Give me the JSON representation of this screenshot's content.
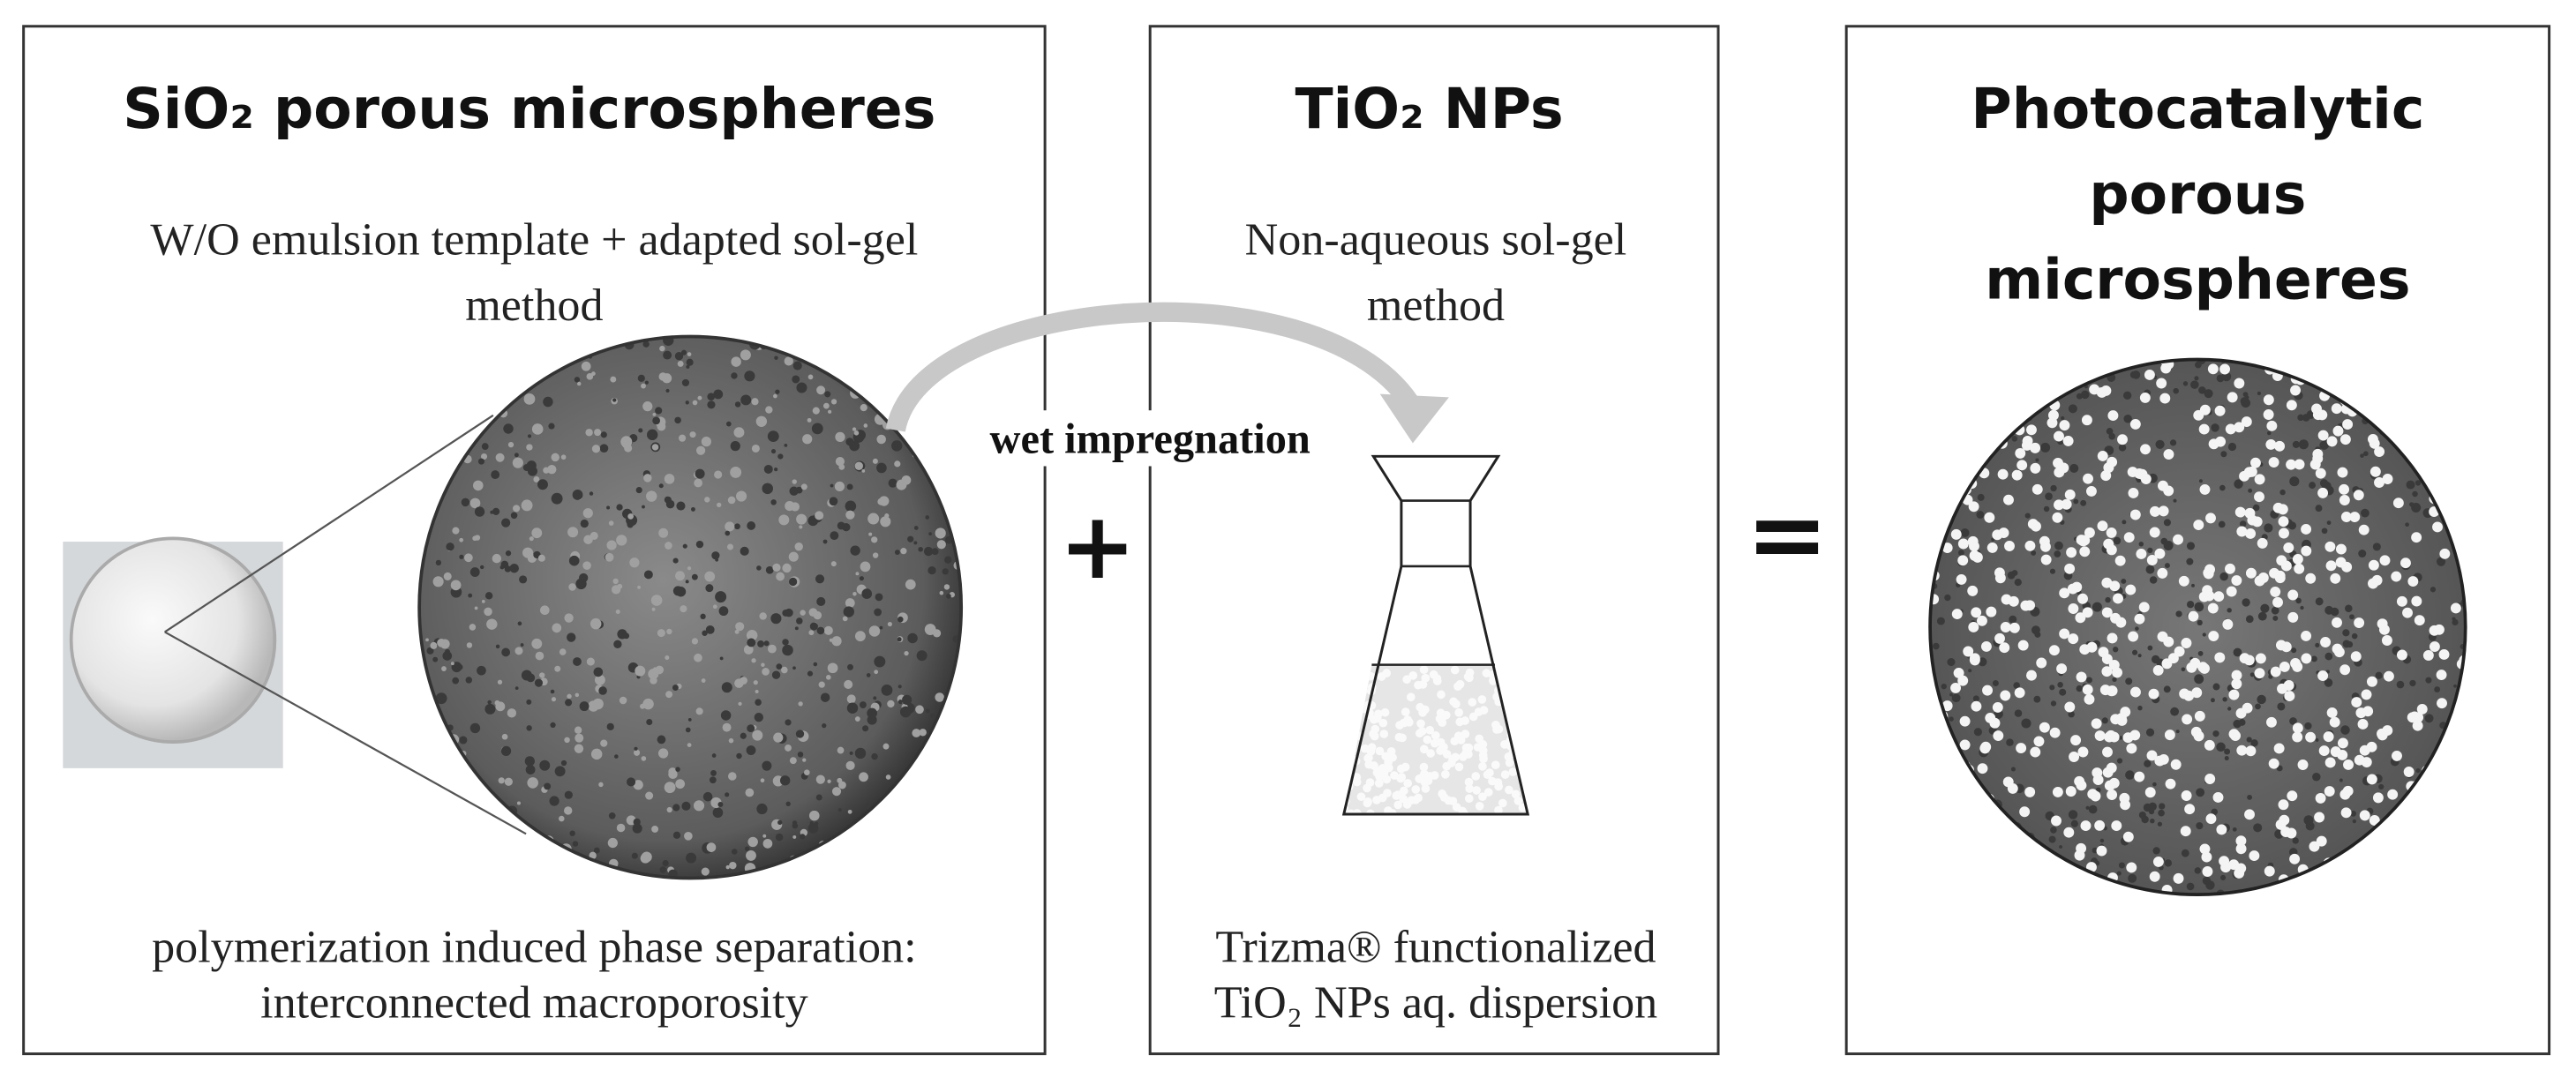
{
  "panels": [
    {
      "title": "SiO₂ porous microspheres",
      "subtitle": [
        "W/O emulsion template + adapted sol-gel",
        "method"
      ],
      "caption": [
        "polymerization induced phase separation:",
        "interconnected macroporosity"
      ]
    },
    {
      "title": "TiO₂ NPs",
      "subtitle": [
        "Non-aqueous sol-gel",
        "method"
      ],
      "caption": [
        "Trizma® functionalized",
        "TiO₂ NPs aq. dispersion"
      ]
    },
    {
      "title": [
        "Photocatalytic",
        "porous",
        "microspheres"
      ]
    }
  ],
  "arrow_label": "wet impregnation",
  "plus": "+",
  "equals": "="
}
